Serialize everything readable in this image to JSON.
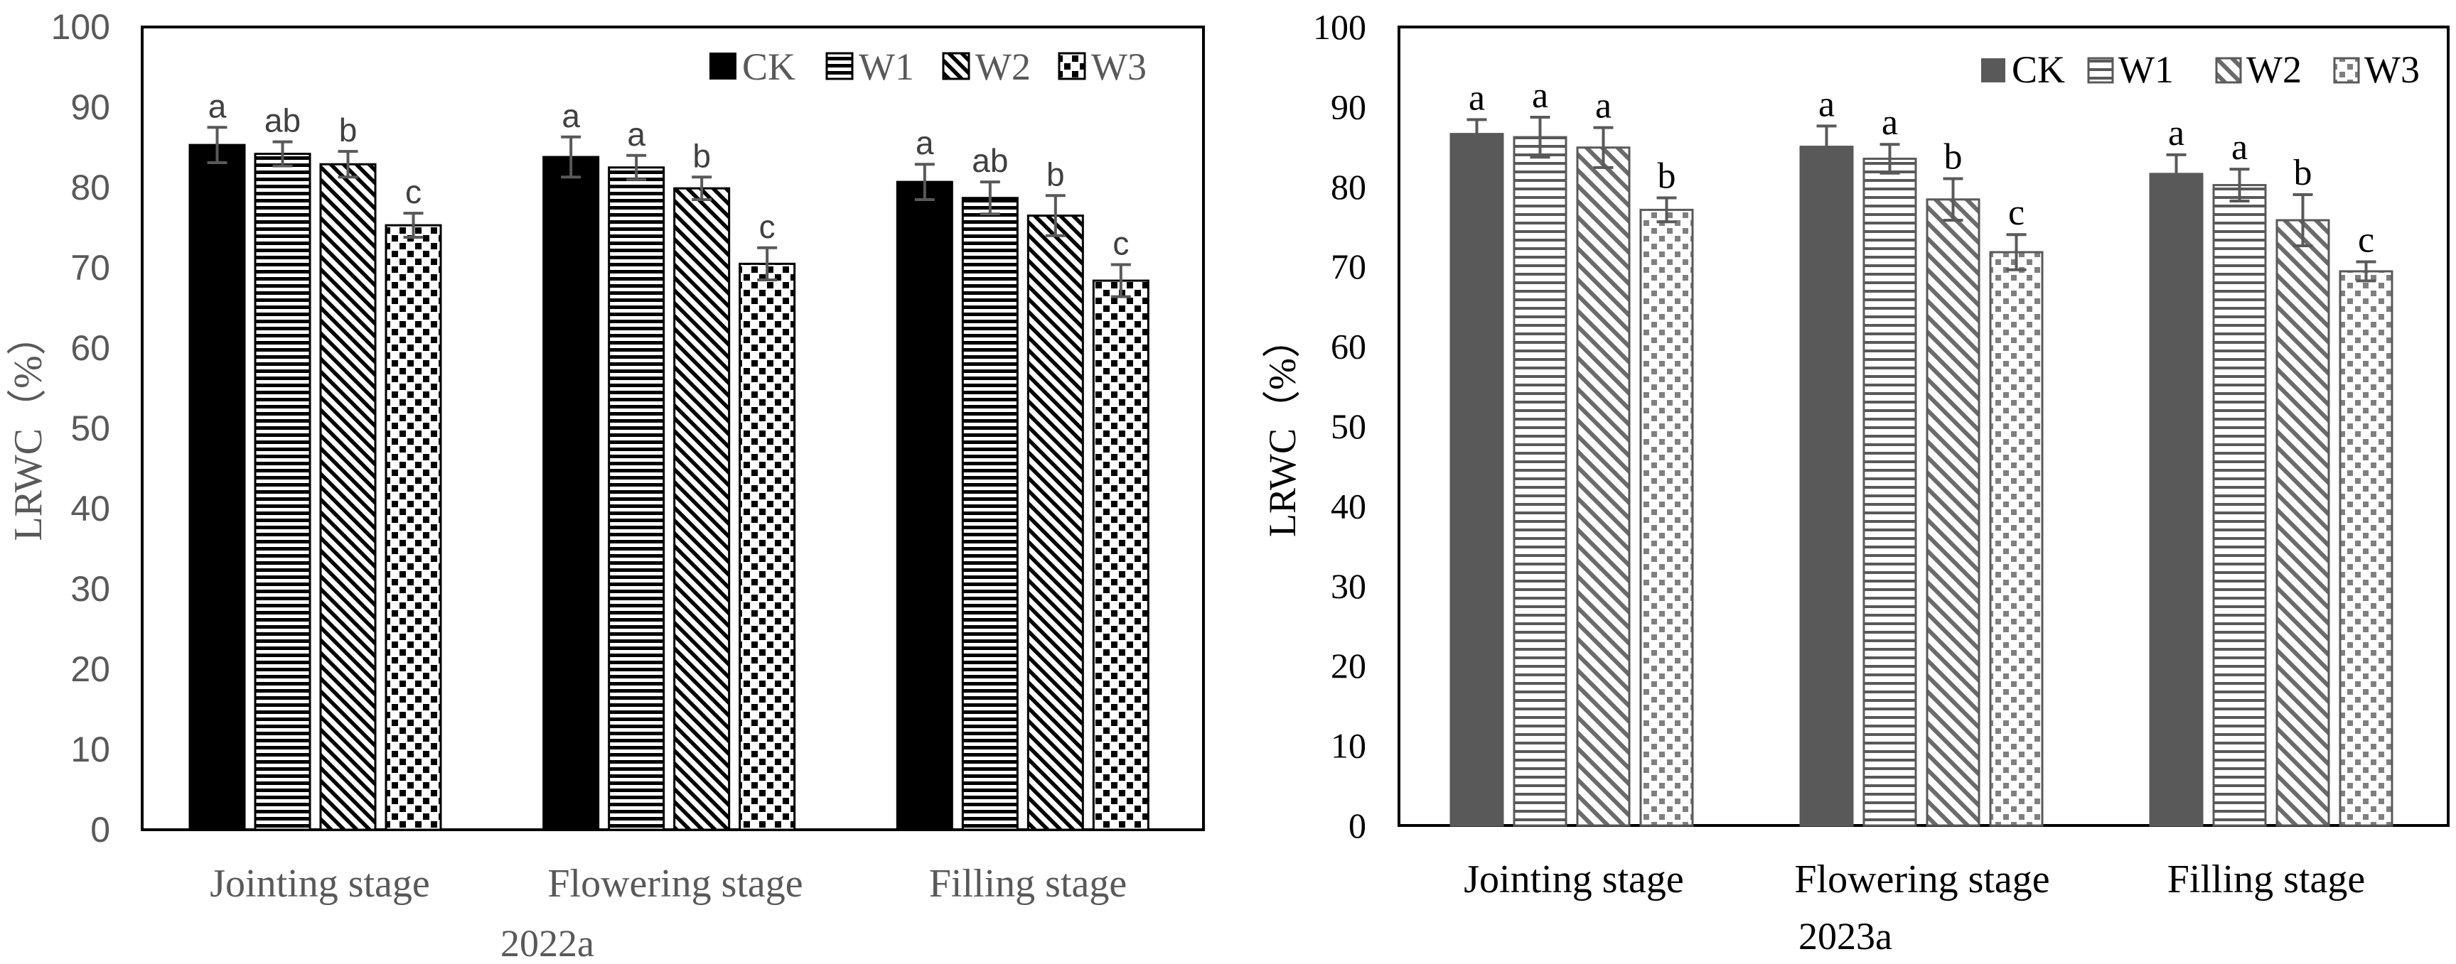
{
  "chart_data": [
    {
      "type": "bar",
      "panel_label": "2022a",
      "title": "",
      "xlabel": "",
      "ylabel": "LRWC（%）",
      "ylim": [
        0,
        100
      ],
      "yticks": [
        0,
        10,
        20,
        30,
        40,
        50,
        60,
        70,
        80,
        90,
        100
      ],
      "categories": [
        "Jointing stage",
        "Flowering stage",
        "Filling stage"
      ],
      "legend_position": "top-right",
      "series": [
        {
          "name": "CK",
          "values": [
            85.3,
            83.8,
            80.7
          ],
          "errors": [
            2.2,
            2.5,
            2.2
          ],
          "letters": [
            "a",
            "a",
            "a"
          ]
        },
        {
          "name": "W1",
          "values": [
            84.2,
            82.5,
            78.7
          ],
          "errors": [
            1.5,
            1.5,
            2.0
          ],
          "letters": [
            "ab",
            "a",
            "ab"
          ]
        },
        {
          "name": "W2",
          "values": [
            82.9,
            79.9,
            76.5
          ],
          "errors": [
            1.6,
            1.4,
            2.5
          ],
          "letters": [
            "b",
            "b",
            "b"
          ]
        },
        {
          "name": "W3",
          "values": [
            75.3,
            70.5,
            68.4
          ],
          "errors": [
            1.5,
            2.0,
            2.0
          ],
          "letters": [
            "c",
            "c",
            "c"
          ]
        }
      ]
    },
    {
      "type": "bar",
      "panel_label": "2023a",
      "title": "",
      "xlabel": "",
      "ylabel": "LRWC（%）",
      "ylim": [
        0,
        100
      ],
      "yticks": [
        0,
        10,
        20,
        30,
        40,
        50,
        60,
        70,
        80,
        90,
        100
      ],
      "categories": [
        "Jointing stage",
        "Flowering stage",
        "Filling stage"
      ],
      "legend_position": "top-right",
      "series": [
        {
          "name": "CK",
          "values": [
            86.6,
            85.0,
            81.6
          ],
          "errors": [
            1.8,
            2.6,
            2.4
          ],
          "letters": [
            "a",
            "a",
            "a"
          ]
        },
        {
          "name": "W1",
          "values": [
            86.2,
            83.5,
            80.2
          ],
          "errors": [
            2.5,
            1.8,
            2.0
          ],
          "letters": [
            "a",
            "a",
            "a"
          ]
        },
        {
          "name": "W2",
          "values": [
            84.9,
            78.4,
            75.8
          ],
          "errors": [
            2.5,
            2.6,
            3.2
          ],
          "letters": [
            "a",
            "b",
            "b"
          ]
        },
        {
          "name": "W3",
          "values": [
            77.1,
            71.8,
            69.4
          ],
          "errors": [
            1.5,
            2.2,
            1.2
          ],
          "letters": [
            "b",
            "c",
            "c"
          ]
        }
      ]
    }
  ]
}
